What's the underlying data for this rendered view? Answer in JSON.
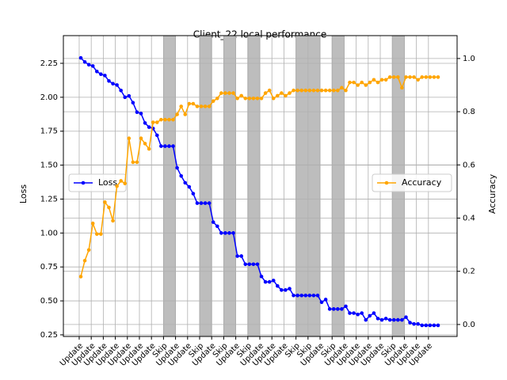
{
  "chart_data": {
    "type": "line",
    "title": "Client_22 local performance",
    "y_label": "Loss",
    "y2_label": "Accuracy",
    "categories": [
      "Update",
      null,
      null,
      "Update",
      null,
      null,
      "Update",
      null,
      null,
      "Update",
      null,
      null,
      "Update",
      null,
      null,
      "Update",
      null,
      null,
      "Update",
      null,
      null,
      "Skip",
      null,
      null,
      "Update",
      null,
      null,
      "Update",
      null,
      null,
      "Skip",
      null,
      null,
      "Update",
      null,
      null,
      "Skip",
      null,
      null,
      "Update",
      null,
      null,
      "Skip",
      null,
      null,
      "Update",
      null,
      null,
      "Update",
      null,
      null,
      "Update",
      null,
      null,
      "Skip",
      null,
      null,
      "Skip",
      null,
      null,
      "Update",
      null,
      null,
      "Skip",
      null,
      null,
      "Update",
      null,
      null,
      "Update",
      null,
      null,
      "Update",
      null,
      null,
      "Update",
      null,
      null,
      "Skip",
      null,
      null,
      "Update",
      null,
      null,
      "Update",
      null,
      null,
      "Update",
      null,
      null
    ],
    "shaded": [
      [
        21,
        24
      ],
      [
        30,
        33
      ],
      [
        36,
        39
      ],
      [
        42,
        45
      ],
      [
        54,
        60
      ],
      [
        63,
        66
      ],
      [
        78,
        81
      ]
    ],
    "shade_color": "#bdbdbd",
    "grid": true,
    "series": [
      {
        "name": "Loss",
        "color": "#0000ff",
        "axis": "y",
        "legend": "center left",
        "values": [
          2.29,
          2.26,
          2.24,
          2.23,
          2.19,
          2.17,
          2.16,
          2.12,
          2.1,
          2.09,
          2.05,
          2.0,
          2.01,
          1.96,
          1.89,
          1.88,
          1.81,
          1.78,
          1.77,
          1.72,
          1.64,
          1.64,
          1.64,
          1.64,
          1.48,
          1.42,
          1.37,
          1.34,
          1.29,
          1.22,
          1.22,
          1.22,
          1.22,
          1.08,
          1.05,
          1.0,
          1.0,
          1.0,
          1.0,
          0.83,
          0.83,
          0.77,
          0.77,
          0.77,
          0.77,
          0.68,
          0.64,
          0.64,
          0.65,
          0.61,
          0.58,
          0.58,
          0.59,
          0.54,
          0.54,
          0.54,
          0.54,
          0.54,
          0.54,
          0.54,
          0.49,
          0.51,
          0.44,
          0.44,
          0.44,
          0.44,
          0.46,
          0.41,
          0.41,
          0.4,
          0.41,
          0.36,
          0.39,
          0.41,
          0.37,
          0.36,
          0.37,
          0.36,
          0.36,
          0.36,
          0.36,
          0.38,
          0.34,
          0.33,
          0.33,
          0.32,
          0.32,
          0.32,
          0.32,
          0.32
        ]
      },
      {
        "name": "Accuracy",
        "color": "#ffa500",
        "axis": "y2",
        "legend": "center right",
        "values": [
          0.18,
          0.24,
          0.28,
          0.38,
          0.34,
          0.34,
          0.46,
          0.44,
          0.39,
          0.52,
          0.54,
          0.53,
          0.7,
          0.61,
          0.61,
          0.7,
          0.68,
          0.66,
          0.76,
          0.76,
          0.77,
          0.77,
          0.77,
          0.77,
          0.79,
          0.82,
          0.79,
          0.83,
          0.83,
          0.82,
          0.82,
          0.82,
          0.82,
          0.84,
          0.85,
          0.87,
          0.87,
          0.87,
          0.87,
          0.85,
          0.86,
          0.85,
          0.85,
          0.85,
          0.85,
          0.85,
          0.87,
          0.88,
          0.85,
          0.86,
          0.87,
          0.86,
          0.87,
          0.88,
          0.88,
          0.88,
          0.88,
          0.88,
          0.88,
          0.88,
          0.88,
          0.88,
          0.88,
          0.88,
          0.88,
          0.89,
          0.88,
          0.91,
          0.91,
          0.9,
          0.91,
          0.9,
          0.91,
          0.92,
          0.91,
          0.92,
          0.92,
          0.93,
          0.93,
          0.93,
          0.89,
          0.93,
          0.93,
          0.93,
          0.92,
          0.93,
          0.93,
          0.93,
          0.93,
          0.93
        ]
      }
    ],
    "ylim": [
      0.238,
      2.454
    ],
    "yticks": [
      0.25,
      {
        "value": 0.5,
        "label": "0.50"
      },
      0.75,
      {
        "value": 1,
        "label": "1.00"
      },
      1.25,
      {
        "value": 1.5,
        "label": "1.50"
      },
      1.75,
      {
        "value": 2,
        "label": "2.00"
      },
      2.25
    ],
    "y2lim": [
      -0.045,
      1.086
    ],
    "y2ticks": [
      {
        "value": 0,
        "label": "0.0"
      },
      0.2,
      0.4,
      0.6,
      0.8,
      {
        "value": 1,
        "label": "1.0"
      }
    ]
  }
}
